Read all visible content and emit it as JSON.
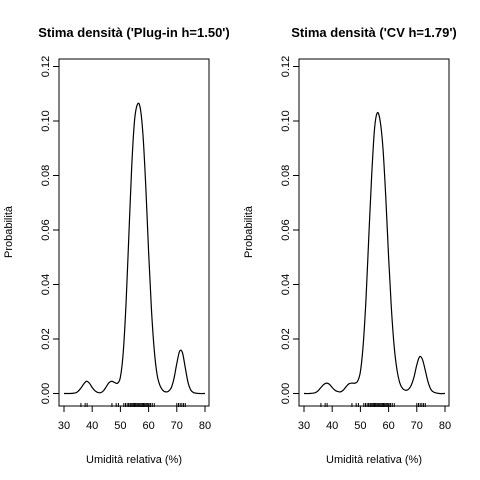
{
  "chart_data": [
    {
      "type": "line",
      "title": "Stima densità ('Plug-in h=1.50')",
      "xlabel": "Umidità relativa (%)",
      "ylabel": "Probabilità",
      "xlim": [
        30,
        80
      ],
      "ylim": [
        0,
        0.12
      ],
      "xticks": [
        "30",
        "40",
        "50",
        "60",
        "70",
        "80"
      ],
      "yticks": [
        "0.00",
        "0.02",
        "0.04",
        "0.06",
        "0.08",
        "0.10",
        "0.12"
      ],
      "grid": false,
      "series": [
        {
          "x": [
            30,
            32,
            34,
            35,
            36,
            37,
            38,
            39,
            40,
            41,
            42,
            43,
            44,
            45,
            46,
            47,
            48,
            49,
            50,
            51,
            52,
            53,
            54,
            55,
            56,
            57,
            58,
            59,
            60,
            61,
            62,
            63,
            64,
            65,
            66,
            67,
            68,
            69,
            70,
            71,
            72,
            73,
            74,
            75,
            76,
            78,
            80
          ],
          "y": [
            0,
            0,
            0.0002,
            0.0008,
            0.002,
            0.0035,
            0.0045,
            0.0038,
            0.0022,
            0.001,
            0.0004,
            0.0003,
            0.001,
            0.0025,
            0.004,
            0.0045,
            0.004,
            0.0038,
            0.006,
            0.015,
            0.033,
            0.058,
            0.083,
            0.1,
            0.106,
            0.105,
            0.095,
            0.076,
            0.052,
            0.031,
            0.016,
            0.007,
            0.003,
            0.0012,
            0.0006,
            0.0008,
            0.002,
            0.0055,
            0.011,
            0.0155,
            0.015,
            0.0095,
            0.004,
            0.0012,
            0.0003,
            0,
            0
          ]
        }
      ],
      "rug": [
        36,
        37.5,
        38.2,
        47,
        48.5,
        49.3,
        51.2,
        51.8,
        52.4,
        52.9,
        53.4,
        53.8,
        54.2,
        54.6,
        55,
        55.4,
        55.8,
        56.2,
        56.6,
        57,
        57.4,
        57.8,
        58.2,
        58.6,
        59,
        59.4,
        59.8,
        60.2,
        60.7,
        61.3,
        62,
        70,
        70.6,
        71.2,
        71.8,
        72.4,
        73
      ]
    },
    {
      "type": "line",
      "title": "Stima densità ('CV h=1.79')",
      "xlabel": "Umidità relativa (%)",
      "ylabel": "Probabilità",
      "xlim": [
        30,
        80
      ],
      "ylim": [
        0,
        0.12
      ],
      "xticks": [
        "30",
        "40",
        "50",
        "60",
        "70",
        "80"
      ],
      "yticks": [
        "0.00",
        "0.02",
        "0.04",
        "0.06",
        "0.08",
        "0.10",
        "0.12"
      ],
      "grid": false,
      "series": [
        {
          "x": [
            30,
            32,
            34,
            35,
            36,
            37,
            38,
            39,
            40,
            41,
            42,
            43,
            44,
            45,
            46,
            47,
            48,
            49,
            50,
            51,
            52,
            53,
            54,
            55,
            56,
            57,
            58,
            59,
            60,
            61,
            62,
            63,
            64,
            65,
            66,
            67,
            68,
            69,
            70,
            71,
            72,
            73,
            74,
            75,
            76,
            78,
            80
          ],
          "y": [
            0,
            0,
            0.0003,
            0.001,
            0.0022,
            0.0033,
            0.0038,
            0.0034,
            0.0022,
            0.0012,
            0.0007,
            0.0006,
            0.0013,
            0.0026,
            0.0036,
            0.0038,
            0.0038,
            0.0045,
            0.008,
            0.018,
            0.035,
            0.058,
            0.08,
            0.097,
            0.103,
            0.1,
            0.09,
            0.072,
            0.05,
            0.031,
            0.017,
            0.0085,
            0.0038,
            0.0018,
            0.0012,
            0.0015,
            0.003,
            0.006,
            0.0105,
            0.0135,
            0.0125,
            0.0085,
            0.0042,
            0.0015,
            0.0005,
            0,
            0
          ]
        }
      ],
      "rug": [
        36,
        37.5,
        38.2,
        47,
        48.5,
        49.3,
        51.2,
        51.8,
        52.4,
        52.9,
        53.4,
        53.8,
        54.2,
        54.6,
        55,
        55.4,
        55.8,
        56.2,
        56.6,
        57,
        57.4,
        57.8,
        58.2,
        58.6,
        59,
        59.4,
        59.8,
        60.2,
        60.7,
        61.3,
        62,
        70,
        70.6,
        71.2,
        71.8,
        72.4,
        73
      ]
    }
  ]
}
